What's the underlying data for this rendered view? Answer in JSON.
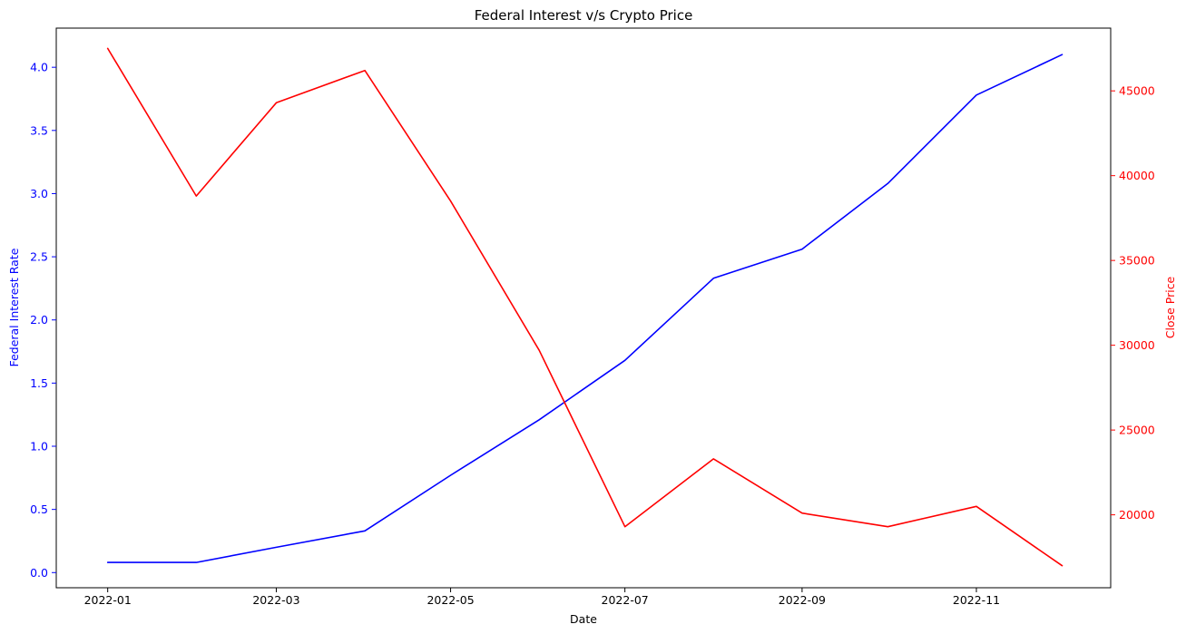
{
  "chart_data": {
    "type": "line",
    "title": "Federal Interest v/s Crypto Price",
    "xlabel": "Date",
    "ylabel_left": "Federal Interest Rate",
    "ylabel_right": "Close Price",
    "x": [
      "2022-01-01",
      "2022-02-01",
      "2022-03-01",
      "2022-04-01",
      "2022-05-01",
      "2022-06-01",
      "2022-07-01",
      "2022-08-01",
      "2022-09-01",
      "2022-10-01",
      "2022-11-01",
      "2022-12-01"
    ],
    "x_ticks": [
      "2022-01",
      "2022-03",
      "2022-05",
      "2022-07",
      "2022-09",
      "2022-11"
    ],
    "y_left_ticks": [
      "0.0",
      "0.5",
      "1.0",
      "1.5",
      "2.0",
      "2.5",
      "3.0",
      "3.5",
      "4.0"
    ],
    "y_right_ticks": [
      "20000",
      "25000",
      "30000",
      "35000",
      "40000",
      "45000"
    ],
    "ylim_left": [
      -0.12,
      4.31
    ],
    "ylim_right": [
      15700,
      48700
    ],
    "xlim": [
      "2021-12-14",
      "2022-12-18"
    ],
    "grid": false,
    "series": [
      {
        "axis": "left",
        "color": "#0000ff",
        "values": [
          0.08,
          0.08,
          0.2,
          0.33,
          0.77,
          1.21,
          1.68,
          2.33,
          2.56,
          3.08,
          3.78,
          4.1
        ]
      },
      {
        "axis": "right",
        "color": "#ff0000",
        "values": [
          47500,
          38800,
          44300,
          46200,
          38500,
          29700,
          19300,
          23300,
          20100,
          19300,
          20500,
          17000
        ]
      }
    ],
    "colors": {
      "left_axis": "#0000ff",
      "right_axis": "#ff0000",
      "text": "#000000"
    }
  }
}
